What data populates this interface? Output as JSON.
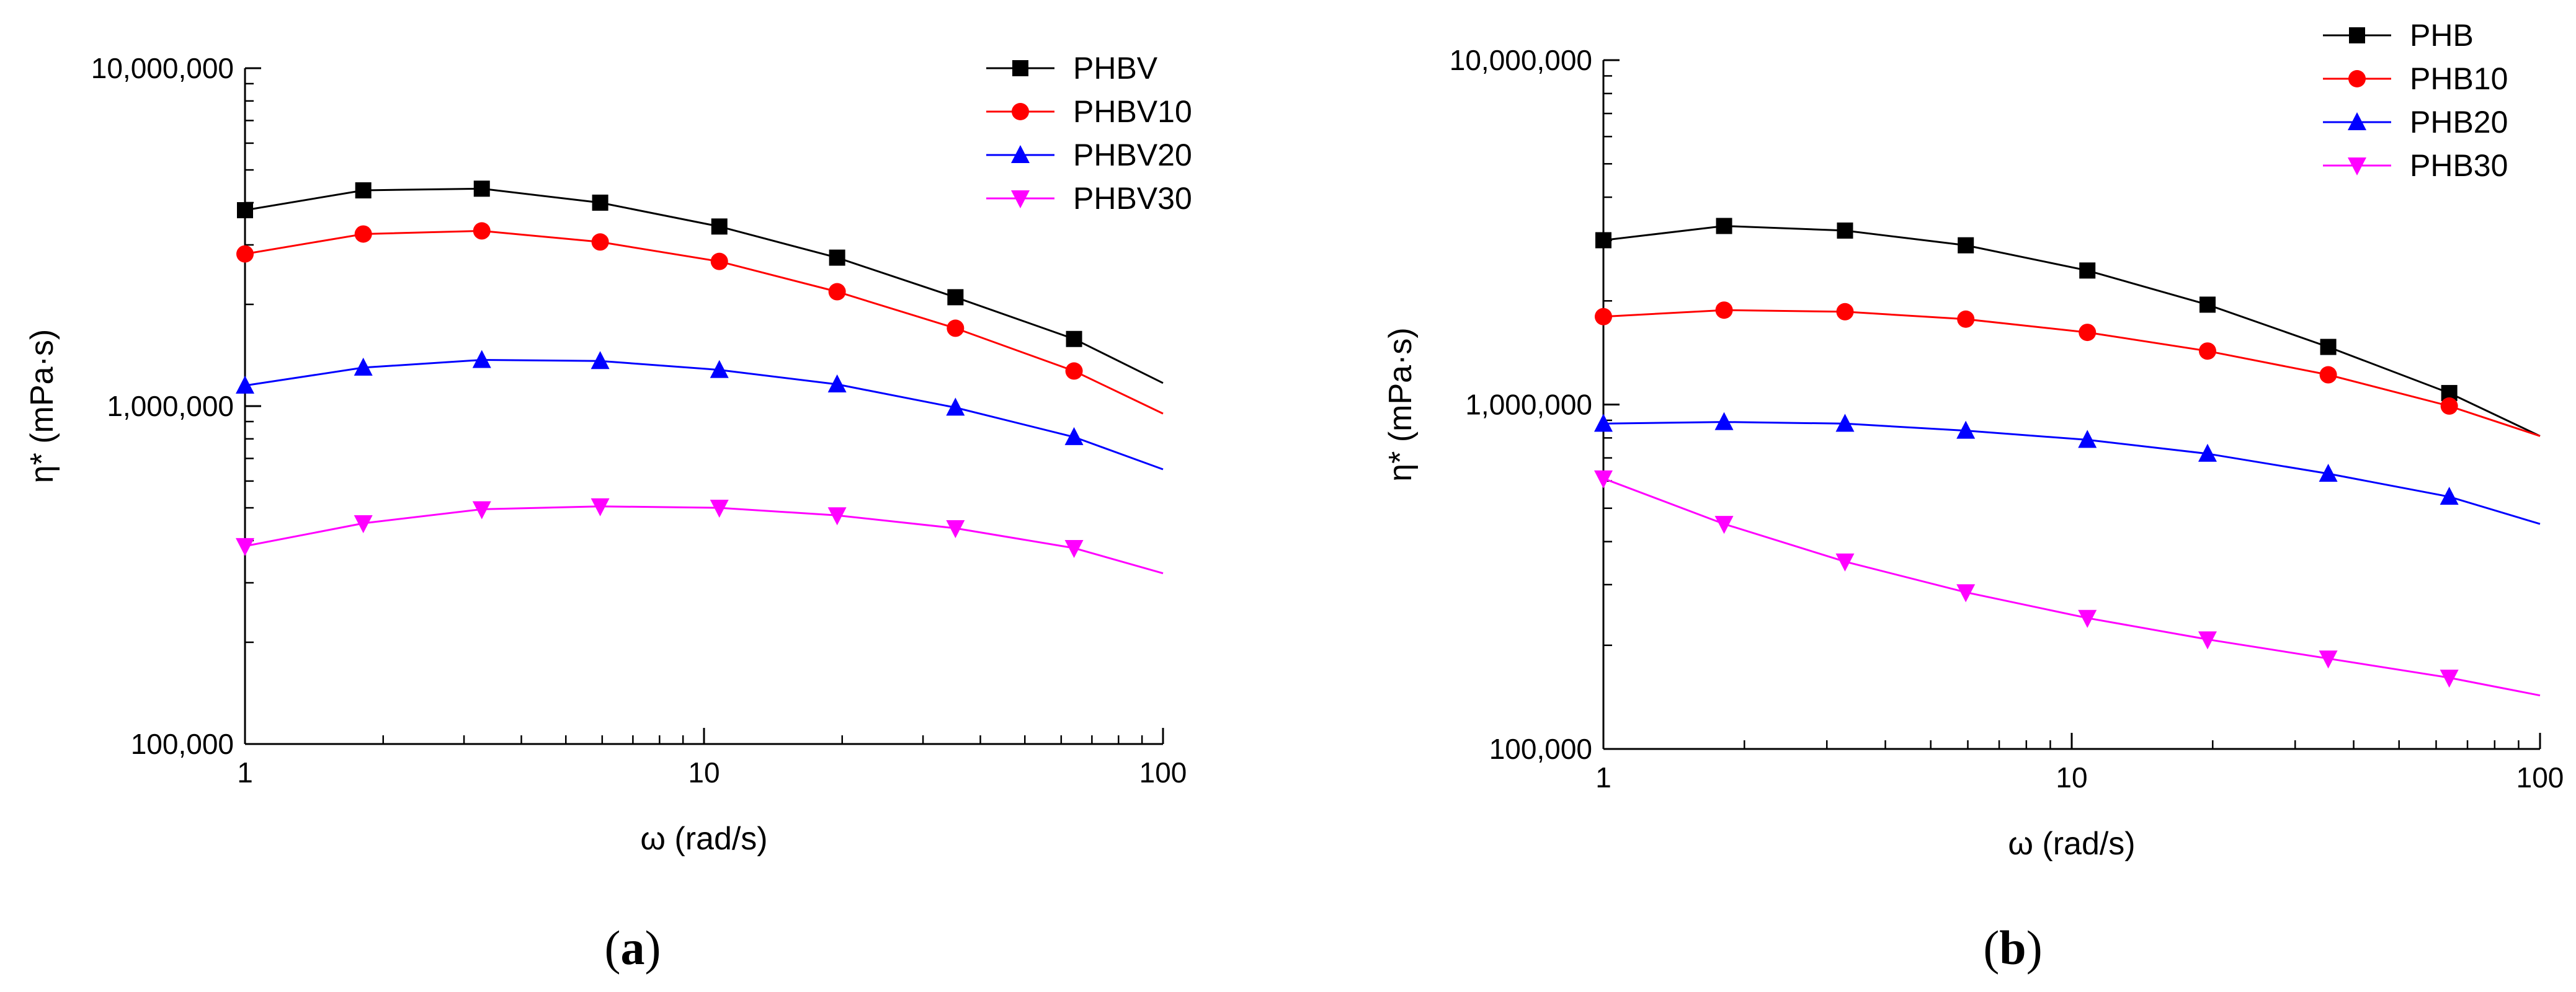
{
  "chart_data": [
    {
      "type": "line",
      "panel_label": "a",
      "xlabel": "ω (rad/s)",
      "ylabel": "η* (mPa·s)",
      "xscale": "log",
      "yscale": "log",
      "xlim": [
        1,
        100
      ],
      "ylim": [
        100000,
        10000000
      ],
      "xticks": [
        1,
        10,
        100
      ],
      "xtick_labels": [
        "1",
        "10",
        "100"
      ],
      "yticks": [
        100000,
        1000000,
        10000000
      ],
      "ytick_labels": [
        "100,000",
        "1,000,000",
        "10,000,000"
      ],
      "legend_position": "top-right",
      "x": [
        1,
        1.81,
        3.28,
        5.94,
        10.8,
        19.5,
        35.3,
        64
      ],
      "x_curve_end": 100,
      "series": [
        {
          "name": "PHBV",
          "color": "#000000",
          "marker": "square",
          "values": [
            3800000,
            4350000,
            4400000,
            4000000,
            3400000,
            2750000,
            2100000,
            1580000
          ],
          "end_value": 1170000
        },
        {
          "name": "PHBV10",
          "color": "#ff0000",
          "marker": "circle",
          "values": [
            2820000,
            3230000,
            3300000,
            3060000,
            2680000,
            2180000,
            1700000,
            1270000
          ],
          "end_value": 950000
        },
        {
          "name": "PHBV20",
          "color": "#0000ff",
          "marker": "triangle-up",
          "values": [
            1150000,
            1300000,
            1370000,
            1360000,
            1280000,
            1160000,
            990000,
            810000
          ],
          "end_value": 650000
        },
        {
          "name": "PHBV30",
          "color": "#ff00ff",
          "marker": "triangle-down",
          "values": [
            385000,
            450000,
            495000,
            505000,
            500000,
            475000,
            435000,
            380000
          ],
          "end_value": 320000
        }
      ]
    },
    {
      "type": "line",
      "panel_label": "b",
      "xlabel": "ω (rad/s)",
      "ylabel": "η* (mPa·s)",
      "xscale": "log",
      "yscale": "log",
      "xlim": [
        1,
        100
      ],
      "ylim": [
        100000,
        10000000
      ],
      "xticks": [
        1,
        10,
        100
      ],
      "xtick_labels": [
        "1",
        "10",
        "100"
      ],
      "yticks": [
        100000,
        1000000,
        10000000
      ],
      "ytick_labels": [
        "100,000",
        "1,000,000",
        "10,000,000"
      ],
      "legend_position": "top-right",
      "x": [
        1,
        1.81,
        3.28,
        5.94,
        10.8,
        19.5,
        35.3,
        64
      ],
      "x_curve_end": 100,
      "series": [
        {
          "name": "PHB",
          "color": "#000000",
          "marker": "square",
          "values": [
            3000000,
            3300000,
            3200000,
            2900000,
            2450000,
            1950000,
            1470000,
            1080000
          ],
          "end_value": 810000
        },
        {
          "name": "PHB10",
          "color": "#ff0000",
          "marker": "circle",
          "values": [
            1800000,
            1880000,
            1860000,
            1770000,
            1620000,
            1430000,
            1220000,
            990000
          ],
          "end_value": 810000
        },
        {
          "name": "PHB20",
          "color": "#0000ff",
          "marker": "triangle-up",
          "values": [
            880000,
            890000,
            880000,
            840000,
            790000,
            720000,
            630000,
            540000
          ],
          "end_value": 450000
        },
        {
          "name": "PHB30",
          "color": "#ff00ff",
          "marker": "triangle-down",
          "values": [
            610000,
            450000,
            350000,
            285000,
            240000,
            208000,
            183000,
            161000
          ],
          "end_value": 143000
        }
      ]
    }
  ]
}
